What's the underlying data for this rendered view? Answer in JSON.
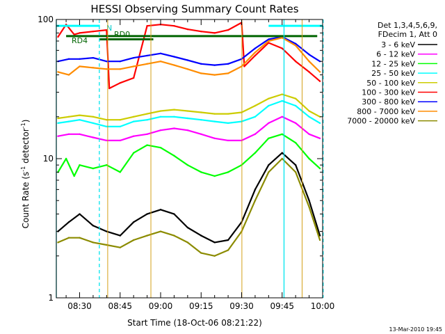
{
  "chart_data": {
    "type": "line",
    "title": "HESSI Observing Summary Count Rates",
    "xlabel": "Start Time (18-Oct-06 08:21:22)",
    "ylabel_prefix": "Count Rate (s",
    "ylabel_sup1": "-1",
    "ylabel_mid": " detector",
    "ylabel_sup2": "-1",
    "ylabel_suffix": ")",
    "xlim_min": [
      501.37,
      600
    ],
    "ylim": [
      1,
      100
    ],
    "yscale": "log",
    "grid": false,
    "x_ticks": [
      {
        "min": 510,
        "label": "08:30"
      },
      {
        "min": 525,
        "label": "08:45"
      },
      {
        "min": 540,
        "label": "09:00"
      },
      {
        "min": 555,
        "label": "09:15"
      },
      {
        "min": 570,
        "label": "09:30"
      },
      {
        "min": 585,
        "label": "09:45"
      },
      {
        "min": 600,
        "label": "10:00"
      }
    ],
    "y_ticks": [
      {
        "value": 1,
        "label": "1"
      },
      {
        "value": 10,
        "label": "10"
      },
      {
        "value": 100,
        "label": "100"
      }
    ],
    "legend_header": [
      "Det 1,3,4,5,6,9,",
      "FDecim 1, Att 0"
    ],
    "legend_position": "right",
    "series": [
      {
        "name": "3 - 6 keV",
        "color": "#000000",
        "x": [
          502,
          506,
          510,
          515,
          520,
          525,
          530,
          535,
          540,
          545,
          550,
          555,
          560,
          565,
          570,
          575,
          580,
          585,
          590,
          595,
          599
        ],
        "y": [
          3,
          3.5,
          4,
          3.3,
          3,
          2.8,
          3.5,
          4,
          4.3,
          4,
          3.2,
          2.8,
          2.5,
          2.6,
          3.5,
          6,
          9,
          11,
          9,
          5,
          2.8
        ]
      },
      {
        "name": "6 - 12 keV",
        "color": "#ff00ff",
        "x": [
          502,
          506,
          510,
          515,
          520,
          525,
          530,
          535,
          540,
          545,
          550,
          555,
          560,
          565,
          570,
          575,
          580,
          585,
          590,
          595,
          599
        ],
        "y": [
          14.5,
          15,
          15,
          14.2,
          13.5,
          13.5,
          14.5,
          15,
          16,
          16.5,
          16,
          15,
          14,
          13.5,
          13.5,
          15,
          18,
          20,
          18,
          15,
          14
        ]
      },
      {
        "name": "12 - 25 keV",
        "color": "#00ff00",
        "x": [
          502,
          505,
          508,
          510,
          515,
          520,
          525,
          530,
          535,
          540,
          545,
          550,
          555,
          560,
          565,
          570,
          575,
          580,
          585,
          590,
          595,
          599
        ],
        "y": [
          8,
          10,
          7.5,
          9,
          8.5,
          9,
          8,
          11,
          12.5,
          12,
          10.5,
          9,
          8,
          7.5,
          8,
          9,
          11,
          14,
          15,
          13,
          10,
          8.5
        ]
      },
      {
        "name": "25 - 50 keV",
        "color": "#00ffff",
        "x": [
          502,
          506,
          510,
          515,
          520,
          525,
          530,
          535,
          540,
          545,
          550,
          555,
          560,
          565,
          570,
          575,
          580,
          585,
          590,
          595,
          599
        ],
        "y": [
          18,
          18.5,
          19,
          18,
          17,
          17,
          18.5,
          19,
          20,
          20,
          19.5,
          19,
          18.5,
          18,
          18.5,
          20,
          24,
          26,
          24,
          20,
          18
        ]
      },
      {
        "name": "50 - 100 keV",
        "color": "#cccc00",
        "x": [
          502,
          506,
          510,
          515,
          520,
          525,
          530,
          535,
          540,
          545,
          550,
          555,
          560,
          565,
          570,
          575,
          580,
          585,
          590,
          595,
          599
        ],
        "y": [
          19.5,
          20,
          20.5,
          20,
          19,
          19,
          20,
          21,
          22,
          22.5,
          22,
          21.5,
          21,
          21,
          21.5,
          24,
          27,
          29,
          27,
          22,
          20
        ]
      },
      {
        "name": "100 - 300 keV",
        "color": "#ff0000",
        "x": [
          502,
          505,
          508,
          510,
          515,
          520,
          521,
          525,
          530,
          535,
          540,
          545,
          550,
          555,
          560,
          565,
          570,
          571,
          575,
          580,
          585,
          590,
          595,
          599
        ],
        "y": [
          75,
          92,
          78,
          80,
          82,
          84,
          32,
          35,
          38,
          90,
          92,
          90,
          85,
          82,
          80,
          84,
          95,
          46,
          55,
          68,
          62,
          50,
          42,
          36
        ]
      },
      {
        "name": "300 - 800 keV",
        "color": "#0000ff",
        "x": [
          502,
          506,
          510,
          515,
          520,
          525,
          530,
          535,
          540,
          545,
          550,
          555,
          560,
          565,
          570,
          575,
          580,
          585,
          590,
          595,
          599
        ],
        "y": [
          50,
          52,
          52,
          53,
          50,
          50,
          53,
          55,
          57,
          54,
          51,
          48,
          47,
          48,
          52,
          62,
          72,
          75,
          67,
          56,
          50
        ]
      },
      {
        "name": "800 - 7000 keV",
        "color": "#ff8c00",
        "x": [
          502,
          506,
          510,
          515,
          520,
          525,
          530,
          535,
          540,
          545,
          550,
          555,
          560,
          565,
          570,
          575,
          580,
          585,
          590,
          595,
          599
        ],
        "y": [
          42,
          40,
          46,
          45,
          44,
          44,
          46,
          48,
          50,
          47,
          44,
          41,
          40,
          41,
          46,
          58,
          70,
          74,
          65,
          50,
          42
        ]
      },
      {
        "name": "7000 - 20000 keV",
        "color": "#8b8b00",
        "x": [
          502,
          506,
          510,
          515,
          520,
          525,
          530,
          535,
          540,
          545,
          550,
          555,
          560,
          565,
          570,
          575,
          580,
          585,
          590,
          595,
          599
        ],
        "y": [
          2.5,
          2.7,
          2.7,
          2.5,
          2.4,
          2.3,
          2.6,
          2.8,
          3,
          2.8,
          2.5,
          2.1,
          2,
          2.2,
          3,
          5,
          8,
          10,
          8,
          4.5,
          2.6
        ]
      }
    ],
    "state_bars": [
      {
        "label": "N",
        "color": "#00ffff",
        "value": 90,
        "segments": [
          [
            501.37,
            517.5
          ],
          [
            580,
            600
          ]
        ]
      },
      {
        "label": "RD0",
        "color": "#006400",
        "value": 76,
        "segments": [
          [
            505,
            540
          ],
          [
            540,
            598
          ]
        ]
      },
      {
        "label": "RD4",
        "color": "#006400",
        "value": 72,
        "segments": [
          [
            517.3,
            520.5
          ],
          [
            520.5,
            537.3
          ]
        ]
      }
    ],
    "vlines_solid": [
      501.37,
      585.7
    ],
    "vlines_dashed": [
      517.3,
      600.2
    ],
    "vlines_gold": [
      520.4,
      536.4,
      570.1,
      592.4
    ],
    "footer_timestamp": "13-Mar-2010 19:45"
  }
}
